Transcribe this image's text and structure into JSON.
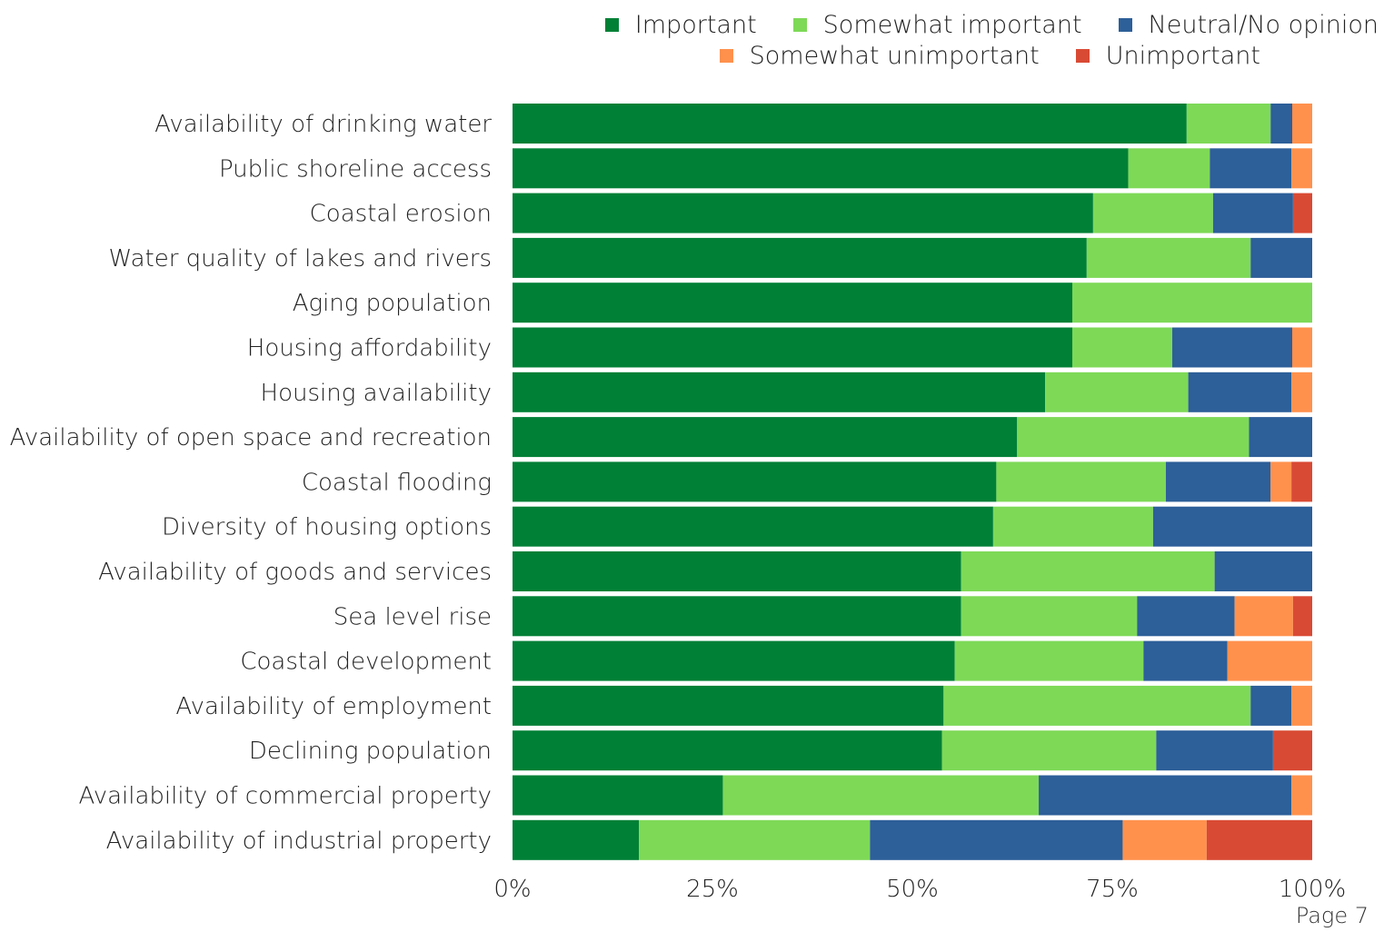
{
  "chart_data": {
    "type": "bar",
    "orientation": "horizontal",
    "stacked": true,
    "categories": [
      "Availability of drinking water",
      "Public shoreline access",
      "Coastal erosion",
      "Water quality of lakes and rivers",
      "Aging population",
      "Housing affordability",
      "Housing availability",
      "Availability of open space and recreation",
      "Coastal flooding",
      "Diversity of housing options",
      "Availability of goods and services",
      "Sea level rise",
      "Coastal development",
      "Availability of employment",
      "Declining population",
      "Availability of commercial property",
      "Availability of industrial property"
    ],
    "series": [
      {
        "name": "Important",
        "color": "#008036",
        "values": [
          84.3,
          77.0,
          72.6,
          71.8,
          70.0,
          70.0,
          66.6,
          63.1,
          60.5,
          60.1,
          56.1,
          56.1,
          55.3,
          53.9,
          53.7,
          26.3,
          15.8
        ]
      },
      {
        "name": "Somewhat important",
        "color": "#7ED957",
        "values": [
          10.5,
          10.2,
          15.0,
          20.5,
          30.0,
          12.5,
          17.9,
          29.0,
          21.2,
          20.0,
          31.7,
          22.0,
          23.6,
          38.4,
          26.8,
          39.5,
          28.9
        ]
      },
      {
        "name": "Neutral/No opinion",
        "color": "#2D5F99",
        "values": [
          2.7,
          10.2,
          10.0,
          7.7,
          0,
          15.0,
          12.9,
          7.9,
          13.1,
          19.9,
          12.2,
          12.2,
          10.5,
          5.1,
          14.6,
          31.6,
          31.6
        ]
      },
      {
        "name": "Somewhat unimportant",
        "color": "#FF914D",
        "values": [
          2.5,
          2.6,
          0,
          0,
          0,
          2.5,
          2.6,
          0,
          2.6,
          0,
          0,
          7.3,
          10.6,
          2.6,
          0,
          2.6,
          10.5
        ]
      },
      {
        "name": "Unimportant",
        "color": "#D94A34",
        "values": [
          0,
          0,
          2.4,
          0,
          0,
          0,
          0,
          0,
          2.6,
          0,
          0,
          2.4,
          0,
          0,
          4.9,
          0,
          13.2
        ]
      }
    ],
    "xlim": [
      0,
      100
    ],
    "xticks": [
      "0%",
      "25%",
      "50%",
      "75%",
      "100%"
    ],
    "grid": false,
    "legend_position": "top-right"
  },
  "page_label": "Page 7"
}
